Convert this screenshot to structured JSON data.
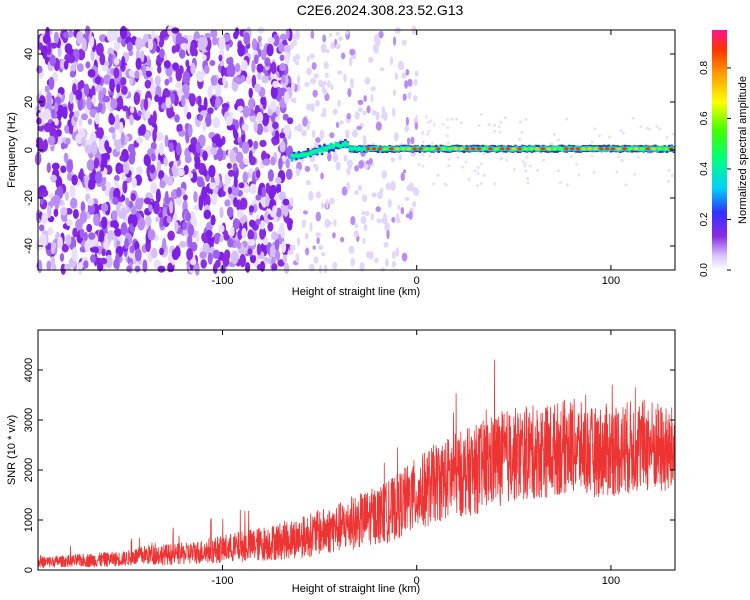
{
  "figure": {
    "title": "C2E6.2024.308.23.52.G13"
  },
  "chart_data": [
    {
      "type": "heatmap",
      "xlabel": "Height of straight line (km)",
      "ylabel": "Frequency (Hz)",
      "xlim": [
        -195,
        133
      ],
      "ylim": [
        -50,
        50
      ],
      "xticks": [
        -100,
        0,
        100
      ],
      "yticks": [
        -40,
        -20,
        0,
        20,
        40
      ],
      "colorbar": {
        "label": "Normalized spectral amplitude",
        "range": [
          0,
          0.95
        ],
        "ticks": [
          0.0,
          0.2,
          0.4,
          0.6,
          0.8
        ]
      },
      "description_regions": {
        "noise_region_x": [
          -195,
          -65
        ],
        "faint_noise_x": [
          -65,
          0
        ],
        "signal_start_x": -65,
        "signal_line_freq_hz": 0.5,
        "signal_peak_amplitude": 0.9
      },
      "grid": false,
      "legend": "colorbar-right"
    },
    {
      "type": "line",
      "xlabel": "Height of straight line (km)",
      "ylabel": "SNR (10 * v/v)",
      "xlim": [
        -195,
        133
      ],
      "ylim": [
        0,
        4800
      ],
      "xticks": [
        -100,
        0,
        100
      ],
      "yticks": [
        0,
        1000,
        2000,
        3000,
        4000
      ],
      "color": "#ee3333",
      "x": [
        -195,
        -180,
        -165,
        -150,
        -140,
        -120,
        -100,
        -80,
        -60,
        -45,
        -35,
        -25,
        -15,
        -5,
        0,
        10,
        20,
        30,
        40,
        50,
        60,
        70,
        80,
        90,
        100,
        110,
        120,
        130,
        133
      ],
      "y": [
        150,
        180,
        200,
        230,
        300,
        320,
        420,
        520,
        650,
        800,
        900,
        1050,
        1150,
        1400,
        1500,
        1750,
        1900,
        2000,
        2200,
        2300,
        2350,
        2400,
        2500,
        2350,
        2400,
        2450,
        2500,
        2350,
        2400
      ],
      "spread": [
        120,
        120,
        150,
        150,
        200,
        220,
        280,
        350,
        420,
        480,
        520,
        560,
        620,
        700,
        750,
        800,
        850,
        900,
        950,
        950,
        950,
        950,
        950,
        900,
        950,
        950,
        950,
        900,
        900
      ],
      "grid": false
    }
  ]
}
